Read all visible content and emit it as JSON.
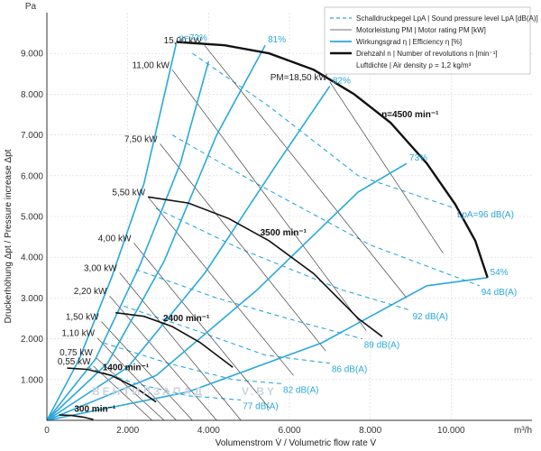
{
  "chart_data": {
    "type": "line",
    "x_unit": "m³/h",
    "y_unit": "Pa",
    "xlabel": "Volumenstrom V̇ / Volumetric flow rate V̇",
    "ylabel": "Druckerhöhung Δpt / Pressure increase Δpt",
    "xlim": [
      0,
      12000
    ],
    "ylim": [
      0,
      10000
    ],
    "x_ticks": [
      "0",
      "2.000",
      "4.000",
      "6.000",
      "8.000",
      "10.000"
    ],
    "x_tick_values": [
      0,
      2000,
      4000,
      6000,
      8000,
      10000
    ],
    "y_ticks": [
      "1.000",
      "2.000",
      "3.000",
      "4.000",
      "5.000",
      "6.000",
      "7.000",
      "8.000",
      "9.000"
    ],
    "y_tick_values": [
      1000,
      2000,
      3000,
      4000,
      5000,
      6000,
      7000,
      8000,
      9000
    ],
    "legend": [
      {
        "text": "Schalldruckpegel LpA | Sound pressure level LpA [dB(A)]",
        "style": "dashed-blue"
      },
      {
        "text": "Motorleistung PM | Motor rating PM [kW]",
        "style": "thin-black"
      },
      {
        "text": "Wirkungsgrad η | Efficiency η [%]",
        "style": "solid-blue"
      },
      {
        "text": "Drehzahl n | Number of revolutions n [min⁻¹]",
        "style": "thick-black"
      },
      {
        "text": "Luftdichte | Air density ρ = 1,2 kg/m³",
        "style": "none"
      }
    ],
    "speed_curves": [
      {
        "name": "300 min⁻¹",
        "points": [
          [
            300,
            130
          ],
          [
            600,
            120
          ],
          [
            900,
            80
          ],
          [
            1150,
            20
          ]
        ]
      },
      {
        "name": "1400 min⁻¹",
        "points": [
          [
            500,
            1280
          ],
          [
            1000,
            1250
          ],
          [
            1600,
            1100
          ],
          [
            2200,
            800
          ],
          [
            2700,
            450
          ]
        ]
      },
      {
        "name": "2400 min⁻¹",
        "points": [
          [
            1700,
            2640
          ],
          [
            2400,
            2550
          ],
          [
            3100,
            2300
          ],
          [
            3800,
            1900
          ],
          [
            4600,
            1300
          ]
        ]
      },
      {
        "name": "3500 min⁻¹",
        "points": [
          [
            2500,
            5480
          ],
          [
            3500,
            5330
          ],
          [
            4500,
            4950
          ],
          [
            5500,
            4400
          ],
          [
            6600,
            3600
          ],
          [
            7700,
            2500
          ],
          [
            8300,
            2050
          ]
        ]
      },
      {
        "name": "n=4500 min⁻¹",
        "points": [
          [
            3200,
            9280
          ],
          [
            4400,
            9200
          ],
          [
            5500,
            9000
          ],
          [
            6600,
            8600
          ],
          [
            7600,
            8000
          ],
          [
            8500,
            7300
          ],
          [
            9400,
            6300
          ],
          [
            10100,
            5300
          ],
          [
            10600,
            4400
          ],
          [
            10900,
            3500
          ]
        ]
      }
    ],
    "motor_lines": [
      {
        "label": "0,55 kW",
        "points": [
          [
            1150,
            1330
          ],
          [
            2600,
            0
          ]
        ]
      },
      {
        "label": "0,75 kW",
        "points": [
          [
            1200,
            1550
          ],
          [
            2900,
            0
          ]
        ]
      },
      {
        "label": "1,10 kW",
        "points": [
          [
            1250,
            2020
          ],
          [
            3200,
            0
          ]
        ]
      },
      {
        "label": "1,50 kW",
        "points": [
          [
            1350,
            2420
          ],
          [
            3600,
            0
          ]
        ]
      },
      {
        "label": "2,20 kW",
        "points": [
          [
            1550,
            3050
          ],
          [
            4200,
            0
          ]
        ]
      },
      {
        "label": "3,00 kW",
        "points": [
          [
            1800,
            3620
          ],
          [
            4800,
            0
          ]
        ]
      },
      {
        "label": "4,00 kW",
        "points": [
          [
            2150,
            4350
          ],
          [
            5500,
            300
          ]
        ]
      },
      {
        "label": "5,50 kW",
        "points": [
          [
            2500,
            5480
          ],
          [
            6100,
            1100
          ]
        ]
      },
      {
        "label": "7,50 kW",
        "points": [
          [
            2800,
            6780
          ],
          [
            6900,
            1700
          ]
        ]
      },
      {
        "label": "11,00 kW",
        "points": [
          [
            3100,
            8600
          ],
          [
            7900,
            2200
          ]
        ]
      },
      {
        "label": "15,00 kW",
        "points": [
          [
            3900,
            9200
          ],
          [
            8900,
            3000
          ]
        ]
      },
      {
        "label": "PM=18,50 kW",
        "points": [
          [
            7000,
            8300
          ],
          [
            9800,
            4100
          ]
        ]
      }
    ],
    "efficiency_lines": [
      {
        "label": "η=72%",
        "points": [
          [
            0,
            0
          ],
          [
            800,
            1500
          ],
          [
            1600,
            3500
          ],
          [
            2400,
            5800
          ],
          [
            3200,
            9250
          ]
        ]
      },
      {
        "label": "",
        "points": [
          [
            0,
            0
          ],
          [
            1200,
            1500
          ],
          [
            2300,
            3800
          ],
          [
            3300,
            6300
          ],
          [
            4000,
            8800
          ]
        ]
      },
      {
        "label": "81%",
        "points": [
          [
            0,
            0
          ],
          [
            1500,
            1400
          ],
          [
            2900,
            3900
          ],
          [
            4200,
            7000
          ],
          [
            5400,
            9200
          ]
        ]
      },
      {
        "label": "82%",
        "points": [
          [
            0,
            0
          ],
          [
            2000,
            1300
          ],
          [
            3900,
            3600
          ],
          [
            5700,
            6300
          ],
          [
            7000,
            8200
          ]
        ]
      },
      {
        "label": "73%",
        "points": [
          [
            0,
            0
          ],
          [
            2700,
            1100
          ],
          [
            5200,
            3200
          ],
          [
            7700,
            5600
          ],
          [
            8900,
            6300
          ]
        ]
      },
      {
        "label": "54%",
        "points": [
          [
            0,
            0
          ],
          [
            3500,
            700
          ],
          [
            6800,
            1900
          ],
          [
            9400,
            3300
          ],
          [
            10900,
            3500
          ]
        ]
      }
    ],
    "sound_lines": [
      {
        "label": "LpA=96 dB(A)",
        "points": [
          [
            3600,
            9000
          ],
          [
            5500,
            7700
          ],
          [
            7700,
            6000
          ],
          [
            10100,
            5200
          ]
        ]
      },
      {
        "label": "94 dB(A)",
        "points": [
          [
            3100,
            7000
          ],
          [
            5200,
            5800
          ],
          [
            8000,
            4300
          ],
          [
            10700,
            3300
          ]
        ]
      },
      {
        "label": "92 dB(A)",
        "points": [
          [
            2700,
            5200
          ],
          [
            4800,
            4200
          ],
          [
            7300,
            3200
          ],
          [
            9000,
            2700
          ]
        ]
      },
      {
        "label": "89 dB(A)",
        "points": [
          [
            2200,
            3700
          ],
          [
            4200,
            3000
          ],
          [
            6300,
            2400
          ],
          [
            7800,
            2000
          ]
        ]
      },
      {
        "label": "86 dB(A)",
        "points": [
          [
            1900,
            2800
          ],
          [
            3700,
            2200
          ],
          [
            5400,
            1600
          ],
          [
            7000,
            1400
          ]
        ]
      },
      {
        "label": "82 dB(A)",
        "points": [
          [
            1400,
            1900
          ],
          [
            3000,
            1400
          ],
          [
            4600,
            1000
          ],
          [
            5800,
            900
          ]
        ]
      },
      {
        "label": "77 dB(A)",
        "points": [
          [
            1000,
            1300
          ],
          [
            2200,
            900
          ],
          [
            3500,
            600
          ],
          [
            4800,
            500
          ]
        ]
      }
    ],
    "watermark": "ВЕНТИЛЗАПАД",
    "watermark_url": "V.BY"
  }
}
